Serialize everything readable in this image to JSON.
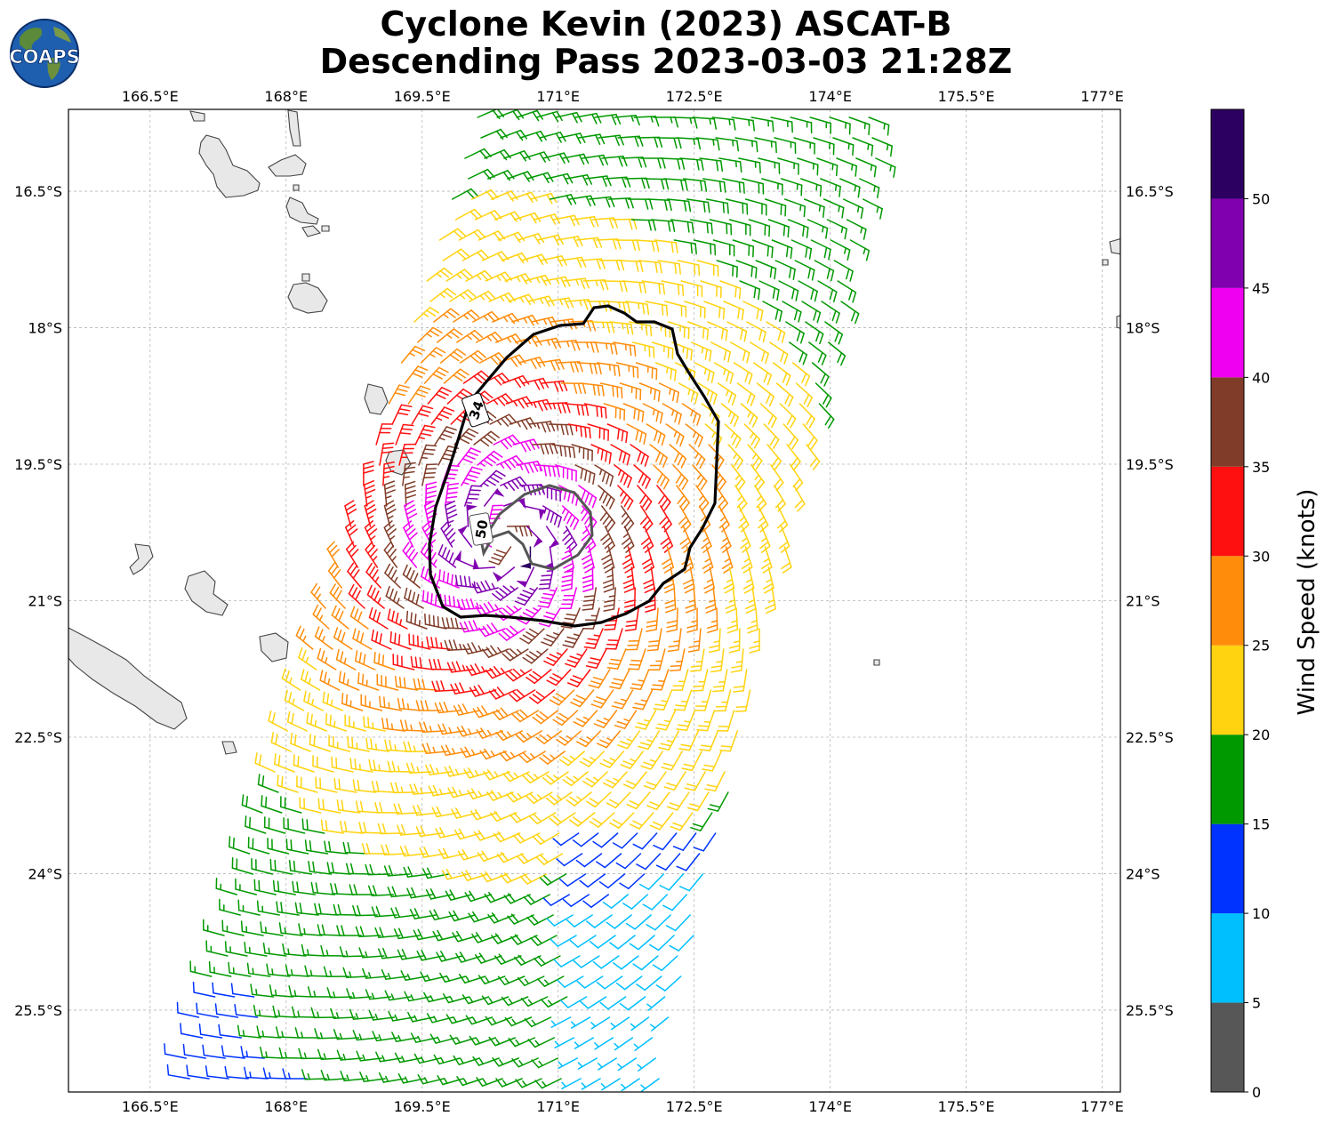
{
  "title": {
    "line1": "Cyclone Kevin (2023) ASCAT-B",
    "line2": "Descending Pass 2023-03-03 21:28Z"
  },
  "logo": {
    "text": "COAPS",
    "icon": "globe-icon"
  },
  "map": {
    "projection": "plate-carree",
    "lon_range": [
      165.6,
      177.2
    ],
    "lat_range": [
      -26.4,
      -15.6
    ],
    "gridlines": true,
    "lon_ticks": [
      "166.5°E",
      "168°E",
      "169.5°E",
      "171°E",
      "172.5°E",
      "174°E",
      "175.5°E",
      "177°E"
    ],
    "lat_ticks": [
      "16.5°S",
      "18°S",
      "19.5°S",
      "21°S",
      "22.5°S",
      "24°S",
      "25.5°S"
    ],
    "land": "Vanuatu and New Caledonia islands",
    "storm_center": {
      "lon": 170.4,
      "lat": -20.3
    },
    "contours": [
      {
        "label": "34",
        "color": "#000000"
      },
      {
        "label": "50",
        "color": "#555555"
      }
    ]
  },
  "colorbar": {
    "label": "Wind Speed (knots)",
    "ticks": [
      "0",
      "5",
      "10",
      "15",
      "20",
      "25",
      "30",
      "35",
      "40",
      "45",
      "50"
    ],
    "bins": [
      {
        "min": 0,
        "max": 5,
        "color": "#575757"
      },
      {
        "min": 5,
        "max": 10,
        "color": "#00bfff"
      },
      {
        "min": 10,
        "max": 15,
        "color": "#0033ff"
      },
      {
        "min": 15,
        "max": 20,
        "color": "#009900"
      },
      {
        "min": 20,
        "max": 25,
        "color": "#ffd30f"
      },
      {
        "min": 25,
        "max": 30,
        "color": "#ff8c0a"
      },
      {
        "min": 30,
        "max": 35,
        "color": "#ff1010"
      },
      {
        "min": 35,
        "max": 40,
        "color": "#803c28"
      },
      {
        "min": 40,
        "max": 45,
        "color": "#f000f0"
      },
      {
        "min": 45,
        "max": 50,
        "color": "#8000b0"
      },
      {
        "min": 50,
        "max": 55,
        "color": "#2c0060"
      }
    ]
  }
}
